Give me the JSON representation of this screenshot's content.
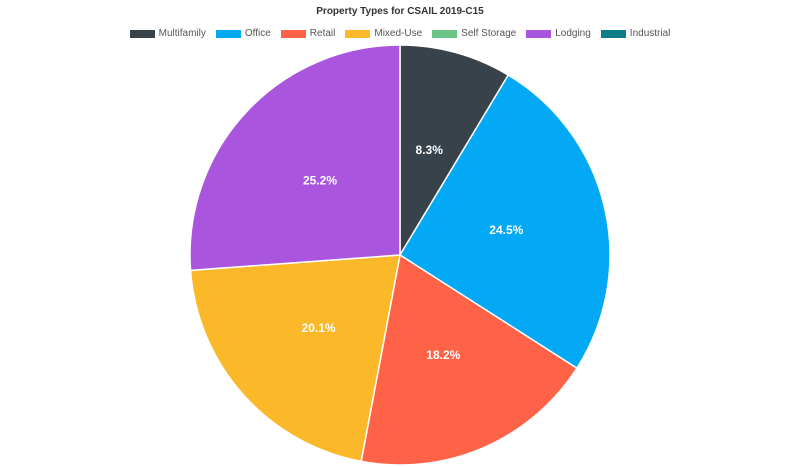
{
  "chart_data": {
    "type": "pie",
    "title": "Property Types for CSAIL 2019-C15",
    "legend_position": "top",
    "categories": [
      "Multifamily",
      "Office",
      "Retail",
      "Mixed-Use",
      "Self Storage",
      "Lodging",
      "Industrial"
    ],
    "values": [
      8.3,
      24.5,
      18.2,
      20.1,
      0.0,
      25.2,
      0.0
    ],
    "data_labels": [
      "8.3%",
      "24.5%",
      "18.2%",
      "20.1%",
      "",
      "25.2%",
      ""
    ],
    "colors": [
      "#37424a",
      "#03a9f4",
      "#ff6347",
      "#fbb829",
      "#6bc589",
      "#aa55dd",
      "#0b7e89"
    ]
  }
}
